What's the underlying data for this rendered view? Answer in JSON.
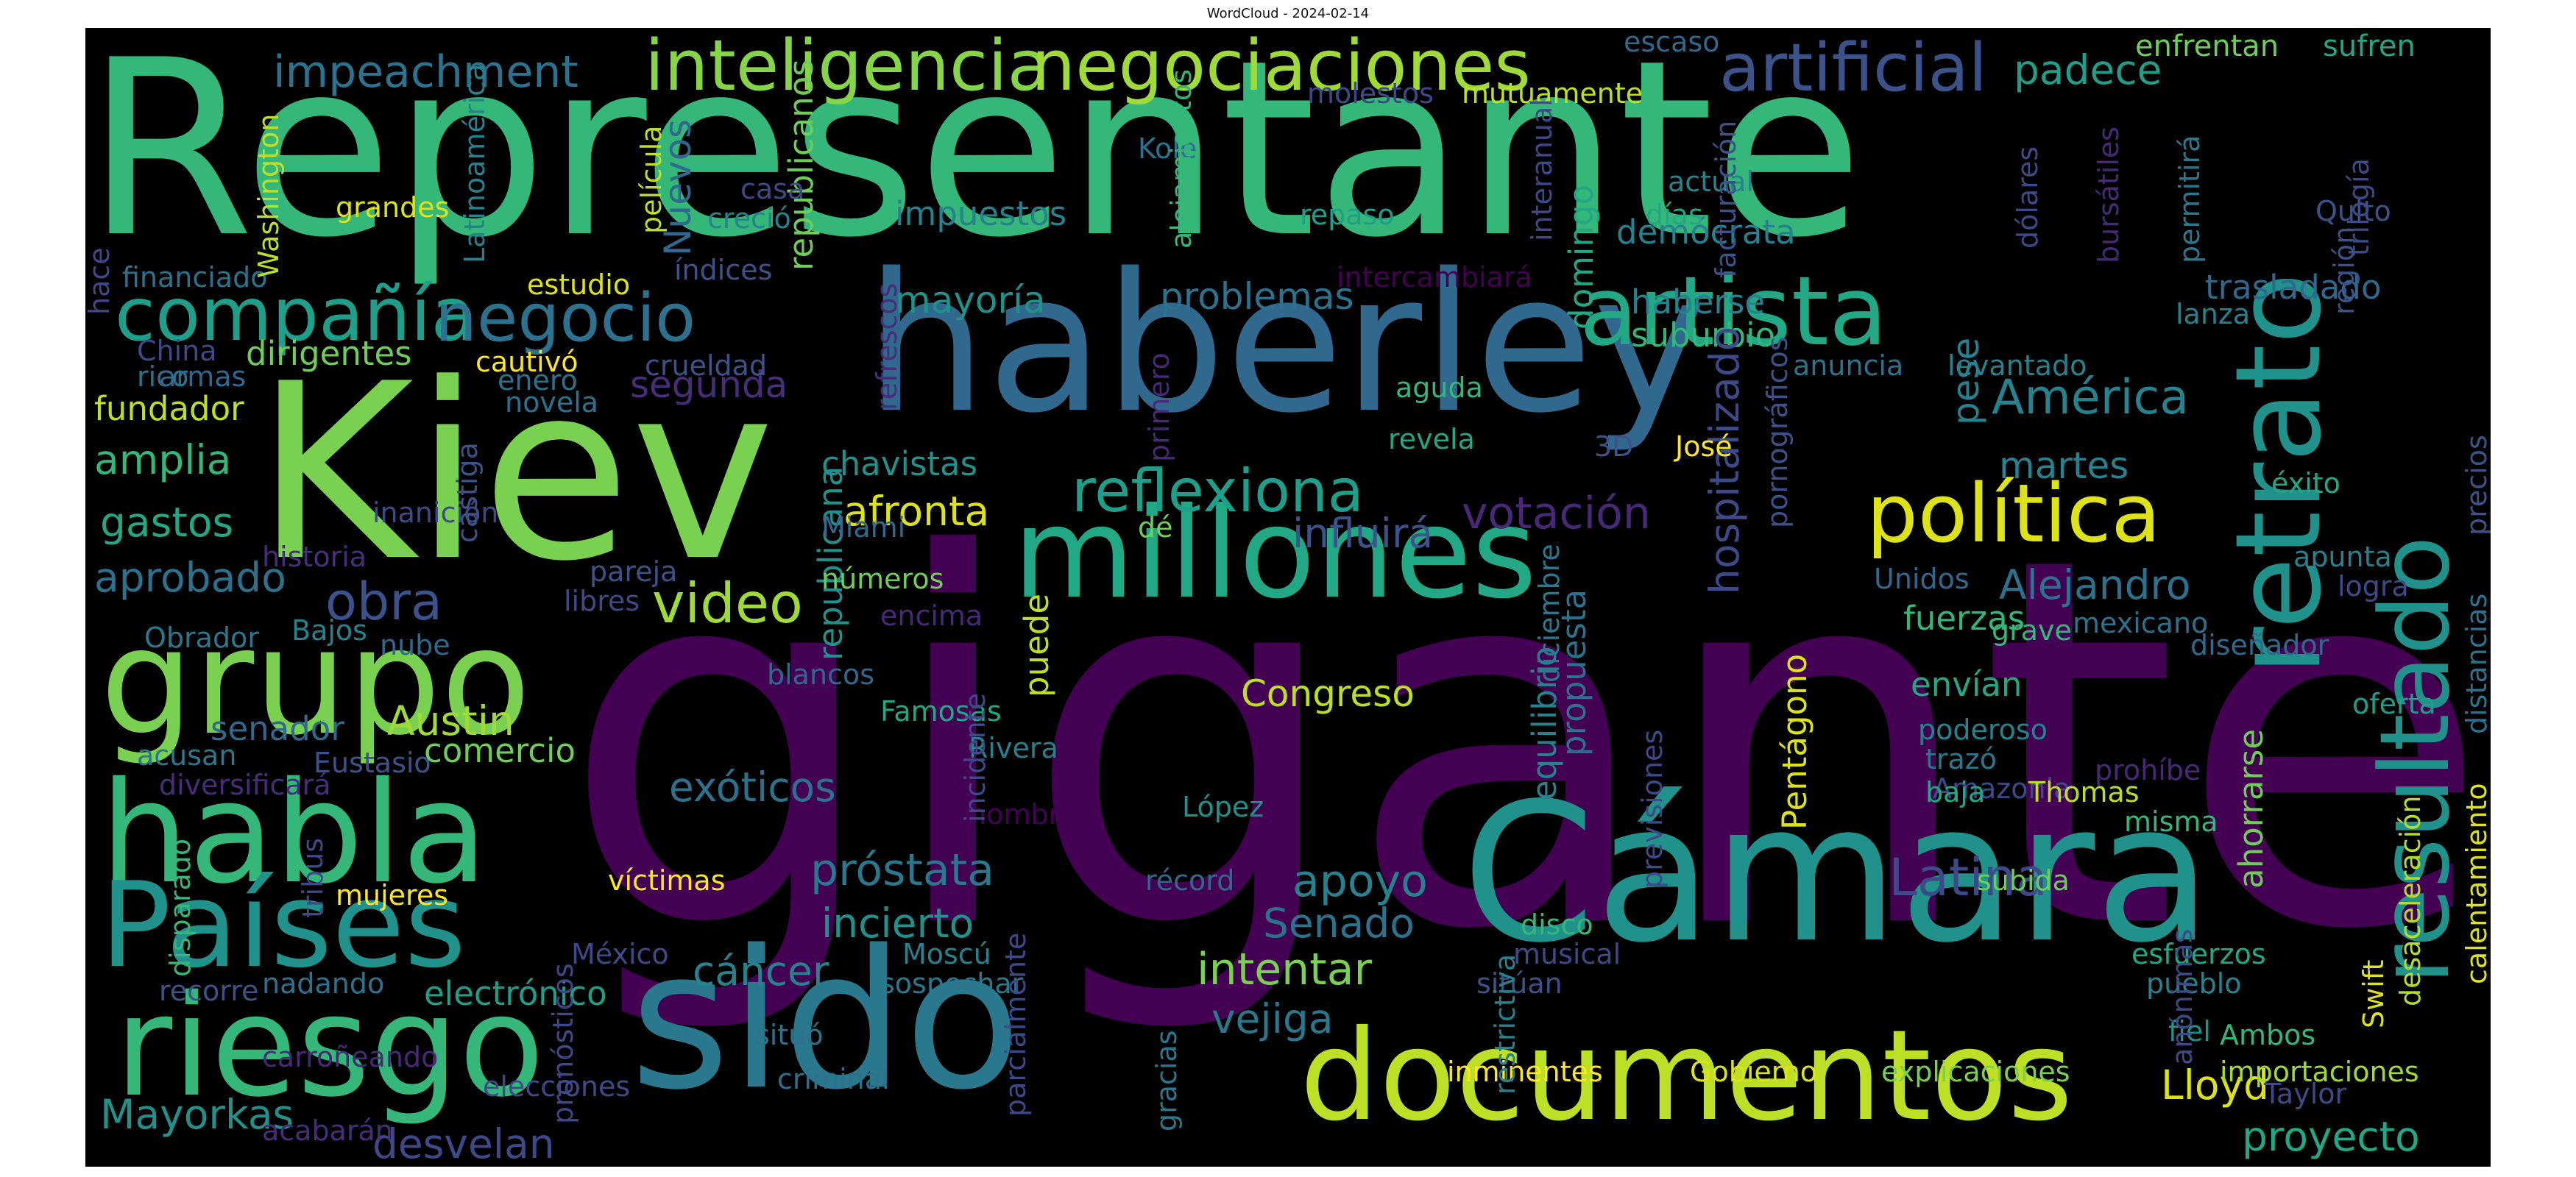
{
  "title": "WordCloud - 2024-02-14",
  "words": [
    {
      "text": "Representante",
      "color": "#35b779"
    },
    {
      "text": "gigante",
      "color": "#440154"
    },
    {
      "text": "Kiev",
      "color": "#7ad151"
    },
    {
      "text": "haberley",
      "color": "#31688e"
    },
    {
      "text": "Cámara",
      "color": "#21918c"
    },
    {
      "text": "sido",
      "color": "#2a788e"
    },
    {
      "text": "millones",
      "color": "#22a884"
    },
    {
      "text": "documentos",
      "color": "#bddf26"
    },
    {
      "text": "grupo",
      "color": "#7ad151"
    },
    {
      "text": "habla",
      "color": "#35b779"
    },
    {
      "text": "Países",
      "color": "#21918c"
    },
    {
      "text": "riesgo",
      "color": "#35b779"
    },
    {
      "text": "retrato",
      "color": "#21918c"
    },
    {
      "text": "resultado",
      "color": "#21918c"
    },
    {
      "text": "artista",
      "color": "#22a884"
    },
    {
      "text": "artificial",
      "color": "#3b528b"
    },
    {
      "text": "política",
      "color": "#dde318"
    },
    {
      "text": "inteligencia",
      "color": "#86d549"
    },
    {
      "text": "negociaciones",
      "color": "#a0da39"
    },
    {
      "text": "compañía",
      "color": "#1f9e89"
    },
    {
      "text": "negocio",
      "color": "#2c728e"
    },
    {
      "text": "reflexiona",
      "color": "#1f9e89"
    },
    {
      "text": "video",
      "color": "#a0da39"
    },
    {
      "text": "obra",
      "color": "#3b528b"
    },
    {
      "text": "Latina",
      "color": "#3e4989"
    },
    {
      "text": "próstata",
      "color": "#2a788e"
    },
    {
      "text": "impeachment",
      "color": "#2c728e"
    },
    {
      "text": "padece",
      "color": "#1f9e89"
    },
    {
      "text": "América",
      "color": "#26828e"
    },
    {
      "text": "Alejandro",
      "color": "#2c728e"
    },
    {
      "text": "proyecto",
      "color": "#22a884"
    },
    {
      "text": "Lloyd",
      "color": "#dde318"
    },
    {
      "text": "Mayorkas",
      "color": "#21918c"
    },
    {
      "text": "desvelan",
      "color": "#3e4989"
    },
    {
      "text": "intentar",
      "color": "#7ad151"
    },
    {
      "text": "vejiga",
      "color": "#2a788e"
    },
    {
      "text": "cáncer",
      "color": "#26828e"
    },
    {
      "text": "incierto",
      "color": "#21918c"
    },
    {
      "text": "Senado",
      "color": "#2c728e"
    },
    {
      "text": "apoyo",
      "color": "#26828e"
    },
    {
      "text": "exóticos",
      "color": "#2c728e"
    },
    {
      "text": "Austin",
      "color": "#a0da39"
    },
    {
      "text": "Congreso",
      "color": "#bddf26"
    },
    {
      "text": "afronta",
      "color": "#dde318"
    },
    {
      "text": "chavistas",
      "color": "#21918c"
    },
    {
      "text": "votación",
      "color": "#482878"
    },
    {
      "text": "influirá",
      "color": "#3b528b"
    },
    {
      "text": "problemas",
      "color": "#2c728e"
    },
    {
      "text": "mayoría",
      "color": "#21918c"
    },
    {
      "text": "segunda",
      "color": "#472d7b"
    },
    {
      "text": "impuestos",
      "color": "#26828e"
    },
    {
      "text": "dirigentes",
      "color": "#6ece58"
    },
    {
      "text": "fundador",
      "color": "#bddf26"
    },
    {
      "text": "amplia",
      "color": "#35b779"
    },
    {
      "text": "gastos",
      "color": "#22a884"
    },
    {
      "text": "aprobado",
      "color": "#2c728e"
    },
    {
      "text": "comercio",
      "color": "#6ece58"
    },
    {
      "text": "electrónico",
      "color": "#1f9e89"
    },
    {
      "text": "senador",
      "color": "#31688e"
    },
    {
      "text": "martes",
      "color": "#26828e"
    },
    {
      "text": "pese",
      "color": "#26828e"
    },
    {
      "text": "fuerzas",
      "color": "#35b779"
    },
    {
      "text": "envían",
      "color": "#22a884"
    },
    {
      "text": "demócrata",
      "color": "#26828e"
    },
    {
      "text": "haberse",
      "color": "#26828e"
    },
    {
      "text": "suburbio",
      "color": "#35b779"
    },
    {
      "text": "trasladado",
      "color": "#31688e"
    },
    {
      "text": "ahorrarse",
      "color": "#6ece58"
    },
    {
      "text": "Pentágono",
      "color": "#dde318"
    },
    {
      "text": "hospitalizado",
      "color": "#3e4989"
    },
    {
      "text": "equilibrio",
      "color": "#26828e"
    },
    {
      "text": "propuesta",
      "color": "#2c728e"
    },
    {
      "text": "domingo",
      "color": "#22a884"
    },
    {
      "text": "Nuevos",
      "color": "#31688e"
    },
    {
      "text": "republicanos",
      "color": "#6ece58"
    },
    {
      "text": "republicana",
      "color": "#21918c"
    },
    {
      "text": "puede",
      "color": "#bddf26"
    },
    {
      "text": "enfrentan",
      "color": "#6ece58"
    },
    {
      "text": "sufren",
      "color": "#22a884"
    },
    {
      "text": "escaso",
      "color": "#31688e"
    },
    {
      "text": "molestos",
      "color": "#3e4989"
    },
    {
      "text": "mutuamente",
      "color": "#bddf26"
    },
    {
      "text": "Kole",
      "color": "#2c728e"
    },
    {
      "text": "actual",
      "color": "#26828e"
    },
    {
      "text": "días",
      "color": "#22a884"
    },
    {
      "text": "repaso",
      "color": "#1f9e89"
    },
    {
      "text": "Quito",
      "color": "#3b528b"
    },
    {
      "text": "casa",
      "color": "#3e4989"
    },
    {
      "text": "creció",
      "color": "#26828e"
    },
    {
      "text": "grandes",
      "color": "#dde318"
    },
    {
      "text": "estudio",
      "color": "#dde318"
    },
    {
      "text": "financiado",
      "color": "#2c728e"
    },
    {
      "text": "China",
      "color": "#3e4989"
    },
    {
      "text": "rico",
      "color": "#2c728e"
    },
    {
      "text": "armas",
      "color": "#31688e"
    },
    {
      "text": "índices",
      "color": "#3b528b"
    },
    {
      "text": "intercambiará",
      "color": "#440154"
    },
    {
      "text": "cautivó",
      "color": "#fde725"
    },
    {
      "text": "crueldad",
      "color": "#3b528b"
    },
    {
      "text": "enero",
      "color": "#2c728e"
    },
    {
      "text": "novela",
      "color": "#2c728e"
    },
    {
      "text": "aguda",
      "color": "#35b779"
    },
    {
      "text": "revela",
      "color": "#22a884"
    },
    {
      "text": "anuncia",
      "color": "#2c728e"
    },
    {
      "text": "levantado",
      "color": "#26828e"
    },
    {
      "text": "lanza",
      "color": "#26828e"
    },
    {
      "text": "José",
      "color": "#fde725"
    },
    {
      "text": "3D",
      "color": "#3b528b"
    },
    {
      "text": "éxito",
      "color": "#22a884"
    },
    {
      "text": "apunta",
      "color": "#26828e"
    },
    {
      "text": "logra",
      "color": "#3e4989"
    },
    {
      "text": "Unidos",
      "color": "#31688e"
    },
    {
      "text": "mexicano",
      "color": "#2c728e"
    },
    {
      "text": "diseñador",
      "color": "#31688e"
    },
    {
      "text": "grave",
      "color": "#35b779"
    },
    {
      "text": "poderoso",
      "color": "#26828e"
    },
    {
      "text": "trazó",
      "color": "#2a788e"
    },
    {
      "text": "Amazonia",
      "color": "#3e4989"
    },
    {
      "text": "prohíbe",
      "color": "#482878"
    },
    {
      "text": "oferta",
      "color": "#1f9e89"
    },
    {
      "text": "Thomas",
      "color": "#bddf26"
    },
    {
      "text": "baja",
      "color": "#22a884"
    },
    {
      "text": "misma",
      "color": "#35b779"
    },
    {
      "text": "subida",
      "color": "#6ece58"
    },
    {
      "text": "esfuerzos",
      "color": "#22a884"
    },
    {
      "text": "pueblo",
      "color": "#26828e"
    },
    {
      "text": "fiel",
      "color": "#21918c"
    },
    {
      "text": "Ambos",
      "color": "#35b779"
    },
    {
      "text": "Taylor",
      "color": "#3e4989"
    },
    {
      "text": "importaciones",
      "color": "#a0da39"
    },
    {
      "text": "explicaciones",
      "color": "#7ad151"
    },
    {
      "text": "Gobierno",
      "color": "#dde318"
    },
    {
      "text": "inminentes",
      "color": "#fde725"
    },
    {
      "text": "musical",
      "color": "#3e4989"
    },
    {
      "text": "disco",
      "color": "#35b779"
    },
    {
      "text": "sitúan",
      "color": "#3b528b"
    },
    {
      "text": "récord",
      "color": "#31688e"
    },
    {
      "text": "víctimas",
      "color": "#fde725"
    },
    {
      "text": "situó",
      "color": "#2c728e"
    },
    {
      "text": "criminal",
      "color": "#2c728e"
    },
    {
      "text": "sospechar",
      "color": "#2a788e"
    },
    {
      "text": "Moscú",
      "color": "#26828e"
    },
    {
      "text": "México",
      "color": "#3e4989"
    },
    {
      "text": "nadando",
      "color": "#2c728e"
    },
    {
      "text": "recorre",
      "color": "#3b528b"
    },
    {
      "text": "carroñeando",
      "color": "#482878"
    },
    {
      "text": "elecciones",
      "color": "#3e4989"
    },
    {
      "text": "acabarán",
      "color": "#472d7b"
    },
    {
      "text": "mujeres",
      "color": "#fde725"
    },
    {
      "text": "hombre",
      "color": "#440154"
    },
    {
      "text": "López",
      "color": "#21918c"
    },
    {
      "text": "Rivera",
      "color": "#26828e"
    },
    {
      "text": "Famosas",
      "color": "#22a884"
    },
    {
      "text": "blancos",
      "color": "#31688e"
    },
    {
      "text": "encima",
      "color": "#482878"
    },
    {
      "text": "números",
      "color": "#6ece58"
    },
    {
      "text": "pareja",
      "color": "#3b528b"
    },
    {
      "text": "dé",
      "color": "#6ece58"
    },
    {
      "text": "Miami",
      "color": "#31688e"
    },
    {
      "text": "libres",
      "color": "#3e4989"
    },
    {
      "text": "nube",
      "color": "#31688e"
    },
    {
      "text": "Bajos",
      "color": "#26828e"
    },
    {
      "text": "inanición",
      "color": "#3e4989"
    },
    {
      "text": "historia",
      "color": "#472d7b"
    },
    {
      "text": "Obrador",
      "color": "#2a788e"
    },
    {
      "text": "Eustasio",
      "color": "#3b528b"
    },
    {
      "text": "acusan",
      "color": "#2a788e"
    },
    {
      "text": "diversificará",
      "color": "#472d7b"
    },
    {
      "text": "tribus",
      "color": "#3e4989"
    },
    {
      "text": "disparado",
      "color": "#35b779"
    },
    {
      "text": "pronósticos",
      "color": "#3e4989"
    },
    {
      "text": "parcialmente",
      "color": "#3e4989"
    },
    {
      "text": "gracias",
      "color": "#2a788e"
    },
    {
      "text": "restrictiva",
      "color": "#26828e"
    },
    {
      "text": "anónimas",
      "color": "#3e4989"
    },
    {
      "text": "Swift",
      "color": "#dde318"
    },
    {
      "text": "desaceleración",
      "color": "#b5de2b"
    },
    {
      "text": "calentamiento",
      "color": "#dde318"
    },
    {
      "text": "distancias",
      "color": "#2c728e"
    },
    {
      "text": "precios",
      "color": "#3b528b"
    },
    {
      "text": "trilogía",
      "color": "#3e4989"
    },
    {
      "text": "región",
      "color": "#3b528b"
    },
    {
      "text": "permitirá",
      "color": "#2a788e"
    },
    {
      "text": "bursátiles",
      "color": "#482878"
    },
    {
      "text": "dólares",
      "color": "#3e4989"
    },
    {
      "text": "facturación",
      "color": "#3b528b"
    },
    {
      "text": "interanual",
      "color": "#3e4989"
    },
    {
      "text": "pornográficos",
      "color": "#3b528b"
    },
    {
      "text": "diciembre",
      "color": "#2a788e"
    },
    {
      "text": "previsiones",
      "color": "#3e4989"
    },
    {
      "text": "incidente",
      "color": "#3e4989"
    },
    {
      "text": "primero",
      "color": "#482878"
    },
    {
      "text": "refrescos",
      "color": "#472d7b"
    },
    {
      "text": "alojamientos",
      "color": "#35b779"
    },
    {
      "text": "película",
      "color": "#bddf26"
    },
    {
      "text": "Latinoamérica",
      "color": "#26828e"
    },
    {
      "text": "Washington",
      "color": "#bddf26"
    },
    {
      "text": "hace",
      "color": "#3e4989"
    },
    {
      "text": "castiga",
      "color": "#3b528b"
    }
  ]
}
